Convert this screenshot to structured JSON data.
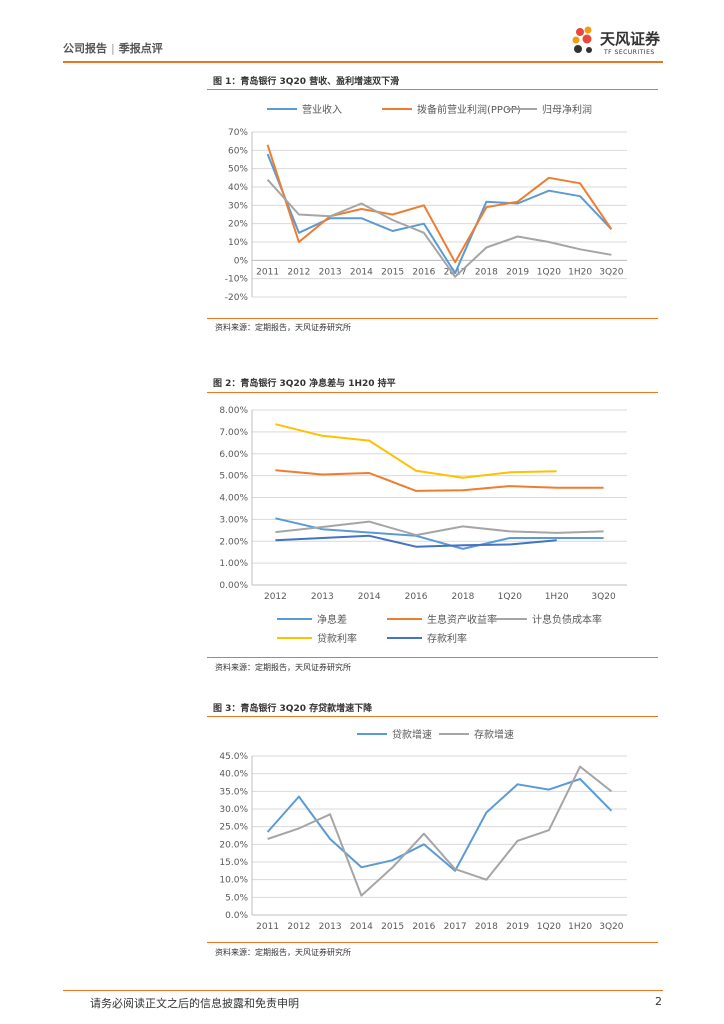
{
  "header": {
    "report_type": "公司报告",
    "separator": "|",
    "section": "季报点评"
  },
  "logo": {
    "name": "天风证券",
    "sub": "TF SECURITIES"
  },
  "footer": {
    "disclaimer": "请务必阅读正文之后的信息披露和免责申明",
    "page": "2"
  },
  "colors": {
    "accent": "#e87722",
    "blue": "#5b9bd5",
    "orange": "#ed7d31",
    "gray": "#a5a5a5",
    "yellow": "#ffc000",
    "darkblue": "#4472c4"
  },
  "chart_data": [
    {
      "type": "line",
      "title": "图 1：青岛银行 3Q20 营收、盈利增速双下滑",
      "source": "资料来源：定期报告，天风证券研究所",
      "categories": [
        "2011",
        "2012",
        "2013",
        "2014",
        "2015",
        "2016",
        "2017",
        "2018",
        "2019",
        "1Q20",
        "1H20",
        "3Q20"
      ],
      "ylim": [
        -20,
        70
      ],
      "yticks": [
        -20,
        -10,
        0,
        10,
        20,
        30,
        40,
        50,
        60,
        70
      ],
      "ytick_format": "pct0",
      "legend_position": "top",
      "series": [
        {
          "name": "营业收入",
          "color": "#5b9bd5",
          "values": [
            58,
            15,
            23,
            23,
            16,
            20,
            -7,
            32,
            31,
            38,
            35,
            17
          ]
        },
        {
          "name": "拨备前营业利润(PPOP)",
          "color": "#ed7d31",
          "values": [
            63,
            10,
            24,
            28,
            25,
            30,
            -1,
            29,
            32,
            45,
            42,
            17
          ]
        },
        {
          "name": "归母净利润",
          "color": "#a5a5a5",
          "values": [
            44,
            25,
            24,
            31,
            22,
            15,
            -9,
            7,
            13,
            10,
            6,
            3
          ]
        }
      ]
    },
    {
      "type": "line",
      "title": "图 2：青岛银行 3Q20 净息差与 1H20 持平",
      "source": "资料来源：定期报告，天风证券研究所",
      "categories": [
        "2012",
        "2013",
        "2014",
        "2016",
        "2018",
        "1Q20",
        "1H20",
        "3Q20"
      ],
      "ylim": [
        0,
        8
      ],
      "yticks": [
        0,
        1,
        2,
        3,
        4,
        5,
        6,
        7,
        8
      ],
      "ytick_format": "pct2",
      "legend_position": "bottom",
      "series": [
        {
          "name": "净息差",
          "color": "#5b9bd5",
          "values": [
            3.05,
            2.55,
            2.4,
            2.25,
            1.65,
            2.15,
            2.15,
            2.15
          ]
        },
        {
          "name": "生息资产收益率",
          "color": "#ed7d31",
          "values": [
            5.25,
            5.05,
            5.12,
            4.3,
            4.33,
            4.52,
            4.45,
            4.45
          ]
        },
        {
          "name": "计息负债成本率",
          "color": "#a5a5a5",
          "values": [
            2.42,
            2.65,
            2.9,
            2.28,
            2.68,
            2.45,
            2.38,
            2.45
          ]
        },
        {
          "name": "贷款利率",
          "color": "#ffc000",
          "values": [
            7.35,
            6.82,
            6.6,
            5.22,
            4.9,
            5.15,
            5.2,
            null
          ]
        },
        {
          "name": "存款利率",
          "color": "#4472c4",
          "values": [
            2.05,
            2.15,
            2.25,
            1.75,
            1.82,
            1.85,
            2.05,
            null
          ]
        }
      ]
    },
    {
      "type": "line",
      "title": "图 3：青岛银行 3Q20 存贷款增速下降",
      "source": "资料来源：定期报告，天风证券研究所",
      "categories": [
        "2011",
        "2012",
        "2013",
        "2014",
        "2015",
        "2016",
        "2017",
        "2018",
        "2019",
        "1Q20",
        "1H20",
        "3Q20"
      ],
      "ylim": [
        0,
        45
      ],
      "yticks": [
        0,
        5,
        10,
        15,
        20,
        25,
        30,
        35,
        40,
        45
      ],
      "ytick_format": "pct1",
      "legend_position": "top",
      "series": [
        {
          "name": "贷款增速",
          "color": "#5b9bd5",
          "values": [
            23.5,
            33.5,
            21.5,
            13.5,
            15.5,
            20,
            12.5,
            29,
            37,
            35.5,
            38.5,
            29.5
          ]
        },
        {
          "name": "存款增速",
          "color": "#a5a5a5",
          "values": [
            21.5,
            24.5,
            28.5,
            5.5,
            13.5,
            23,
            13,
            10,
            21,
            24,
            42,
            35
          ]
        }
      ]
    }
  ]
}
